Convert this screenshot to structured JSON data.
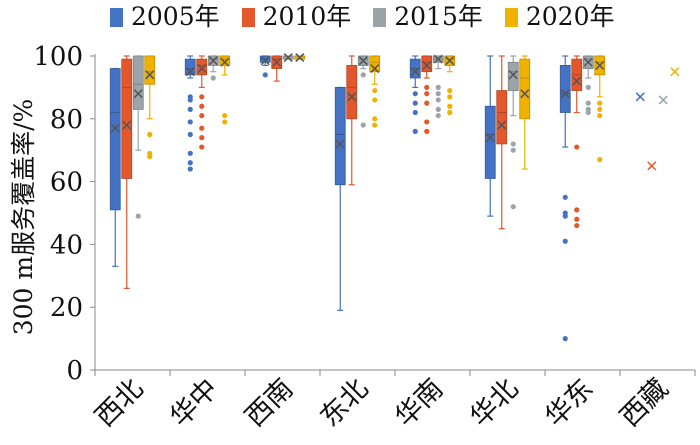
{
  "chart_data": {
    "type": "box",
    "ylabel": "300 m服务覆盖率/%",
    "xlabel": "",
    "ylim": [
      0,
      100
    ],
    "yticks": [
      0,
      20,
      40,
      60,
      80,
      100
    ],
    "ytick_labels": [
      "0",
      "20",
      "40",
      "60",
      "80",
      "100"
    ],
    "grid": false,
    "legend_position": "top",
    "categories": [
      "西北",
      "华中",
      "西南",
      "东北",
      "华南",
      "华北",
      "华东",
      "西藏"
    ],
    "series": [
      {
        "name": "2005年",
        "color": "#4472c4",
        "boxes": [
          {
            "whisker_low": 33,
            "q1": 51,
            "median": 82,
            "q3": 96,
            "whisker_high": 96,
            "mean": 77,
            "outliers": []
          },
          {
            "whisker_low": 93,
            "q1": 94,
            "median": 96,
            "q3": 99,
            "whisker_high": 100,
            "mean": 95,
            "outliers": [
              87,
              86,
              83,
              79,
              75,
              69,
              66,
              64
            ]
          },
          {
            "whisker_low": 97,
            "q1": 98,
            "median": 99,
            "q3": 100,
            "whisker_high": 100,
            "mean": 98.5,
            "outliers": [
              94
            ]
          },
          {
            "whisker_low": 19,
            "q1": 59,
            "median": 75,
            "q3": 90,
            "whisker_high": 90,
            "mean": 72,
            "outliers": []
          },
          {
            "whisker_low": 90,
            "q1": 93,
            "median": 96,
            "q3": 99,
            "whisker_high": 100,
            "mean": 95,
            "outliers": [
              88,
              85,
              82,
              76
            ]
          },
          {
            "whisker_low": 49,
            "q1": 61,
            "median": 75,
            "q3": 84,
            "whisker_high": 100,
            "mean": 74,
            "outliers": []
          },
          {
            "whisker_low": 71,
            "q1": 82,
            "median": 88,
            "q3": 97,
            "whisker_high": 100,
            "mean": 88,
            "outliers": [
              55,
              50,
              49,
              41,
              10
            ]
          },
          {
            "whisker_low": null,
            "q1": null,
            "median": null,
            "q3": null,
            "whisker_high": null,
            "mean": 87,
            "outliers": []
          }
        ]
      },
      {
        "name": "2010年",
        "color": "#e2572c",
        "boxes": [
          {
            "whisker_low": 26,
            "q1": 61,
            "median": 90,
            "q3": 99,
            "whisker_high": 100,
            "mean": 78,
            "outliers": []
          },
          {
            "whisker_low": 90,
            "q1": 94,
            "median": 97,
            "q3": 99,
            "whisker_high": 100,
            "mean": 96,
            "outliers": [
              87,
              84,
              81,
              77,
              74,
              71
            ]
          },
          {
            "whisker_low": 92,
            "q1": 96,
            "median": 99,
            "q3": 100,
            "whisker_high": 100,
            "mean": 98,
            "outliers": []
          },
          {
            "whisker_low": 59,
            "q1": 80,
            "median": 90,
            "q3": 97,
            "whisker_high": 100,
            "mean": 87,
            "outliers": []
          },
          {
            "whisker_low": 93,
            "q1": 95,
            "median": 98,
            "q3": 100,
            "whisker_high": 100,
            "mean": 97,
            "outliers": [
              90,
              88,
              85,
              79,
              76
            ]
          },
          {
            "whisker_low": 45,
            "q1": 72,
            "median": 82,
            "q3": 89,
            "whisker_high": 100,
            "mean": 78,
            "outliers": []
          },
          {
            "whisker_low": 82,
            "q1": 89,
            "median": 94,
            "q3": 99,
            "whisker_high": 100,
            "mean": 92,
            "outliers": [
              71,
              51,
              48,
              46
            ]
          },
          {
            "whisker_low": null,
            "q1": null,
            "median": null,
            "q3": null,
            "whisker_high": null,
            "mean": 65,
            "outliers": []
          }
        ]
      },
      {
        "name": "2015年",
        "color": "#9aa4a9",
        "boxes": [
          {
            "whisker_low": 70,
            "q1": 83,
            "median": 91,
            "q3": 100,
            "whisker_high": 100,
            "mean": 88,
            "outliers": [
              49
            ]
          },
          {
            "whisker_low": 95,
            "q1": 97,
            "median": 99,
            "q3": 100,
            "whisker_high": 100,
            "mean": 98.5,
            "outliers": [
              93
            ]
          },
          {
            "whisker_low": 99,
            "q1": 99,
            "median": 100,
            "q3": 100,
            "whisker_high": 100,
            "mean": 99.5,
            "outliers": []
          },
          {
            "whisker_low": 96,
            "q1": 97,
            "median": 99,
            "q3": 100,
            "whisker_high": 100,
            "mean": 98.5,
            "outliers": [
              94,
              78
            ]
          },
          {
            "whisker_low": 96,
            "q1": 98,
            "median": 99,
            "q3": 100,
            "whisker_high": 100,
            "mean": 99,
            "outliers": [
              90,
              88,
              86,
              83,
              81
            ]
          },
          {
            "whisker_low": 81,
            "q1": 89,
            "median": 95,
            "q3": 98,
            "whisker_high": 100,
            "mean": 94,
            "outliers": [
              72,
              70,
              52
            ]
          },
          {
            "whisker_low": 93,
            "q1": 96,
            "median": 99,
            "q3": 100,
            "whisker_high": 100,
            "mean": 98,
            "outliers": [
              90,
              85,
              83,
              82
            ]
          },
          {
            "whisker_low": null,
            "q1": null,
            "median": null,
            "q3": null,
            "whisker_high": null,
            "mean": 86,
            "outliers": []
          }
        ]
      },
      {
        "name": "2020年",
        "color": "#f0b100",
        "boxes": [
          {
            "whisker_low": 80,
            "q1": 91,
            "median": 95,
            "q3": 100,
            "whisker_high": 100,
            "mean": 94,
            "outliers": [
              75,
              69,
              68
            ]
          },
          {
            "whisker_low": 94,
            "q1": 97,
            "median": 99,
            "q3": 100,
            "whisker_high": 100,
            "mean": 98,
            "outliers": [
              81,
              79
            ]
          },
          {
            "whisker_low": 99,
            "q1": 99,
            "median": 100,
            "q3": 100,
            "whisker_high": 100,
            "mean": 99.5,
            "outliers": []
          },
          {
            "whisker_low": 91,
            "q1": 95,
            "median": 98,
            "q3": 100,
            "whisker_high": 100,
            "mean": 96,
            "outliers": [
              89,
              86,
              80,
              78
            ]
          },
          {
            "whisker_low": 95,
            "q1": 97,
            "median": 99,
            "q3": 100,
            "whisker_high": 100,
            "mean": 98.5,
            "outliers": [
              89,
              87,
              84,
              82
            ]
          },
          {
            "whisker_low": 64,
            "q1": 80,
            "median": 93,
            "q3": 99,
            "whisker_high": 100,
            "mean": 88,
            "outliers": []
          },
          {
            "whisker_low": 87,
            "q1": 94,
            "median": 98,
            "q3": 100,
            "whisker_high": 100,
            "mean": 97,
            "outliers": [
              85,
              83,
              81,
              67
            ]
          },
          {
            "whisker_low": null,
            "q1": null,
            "median": null,
            "q3": null,
            "whisker_high": null,
            "mean": 95,
            "outliers": []
          }
        ]
      }
    ]
  }
}
